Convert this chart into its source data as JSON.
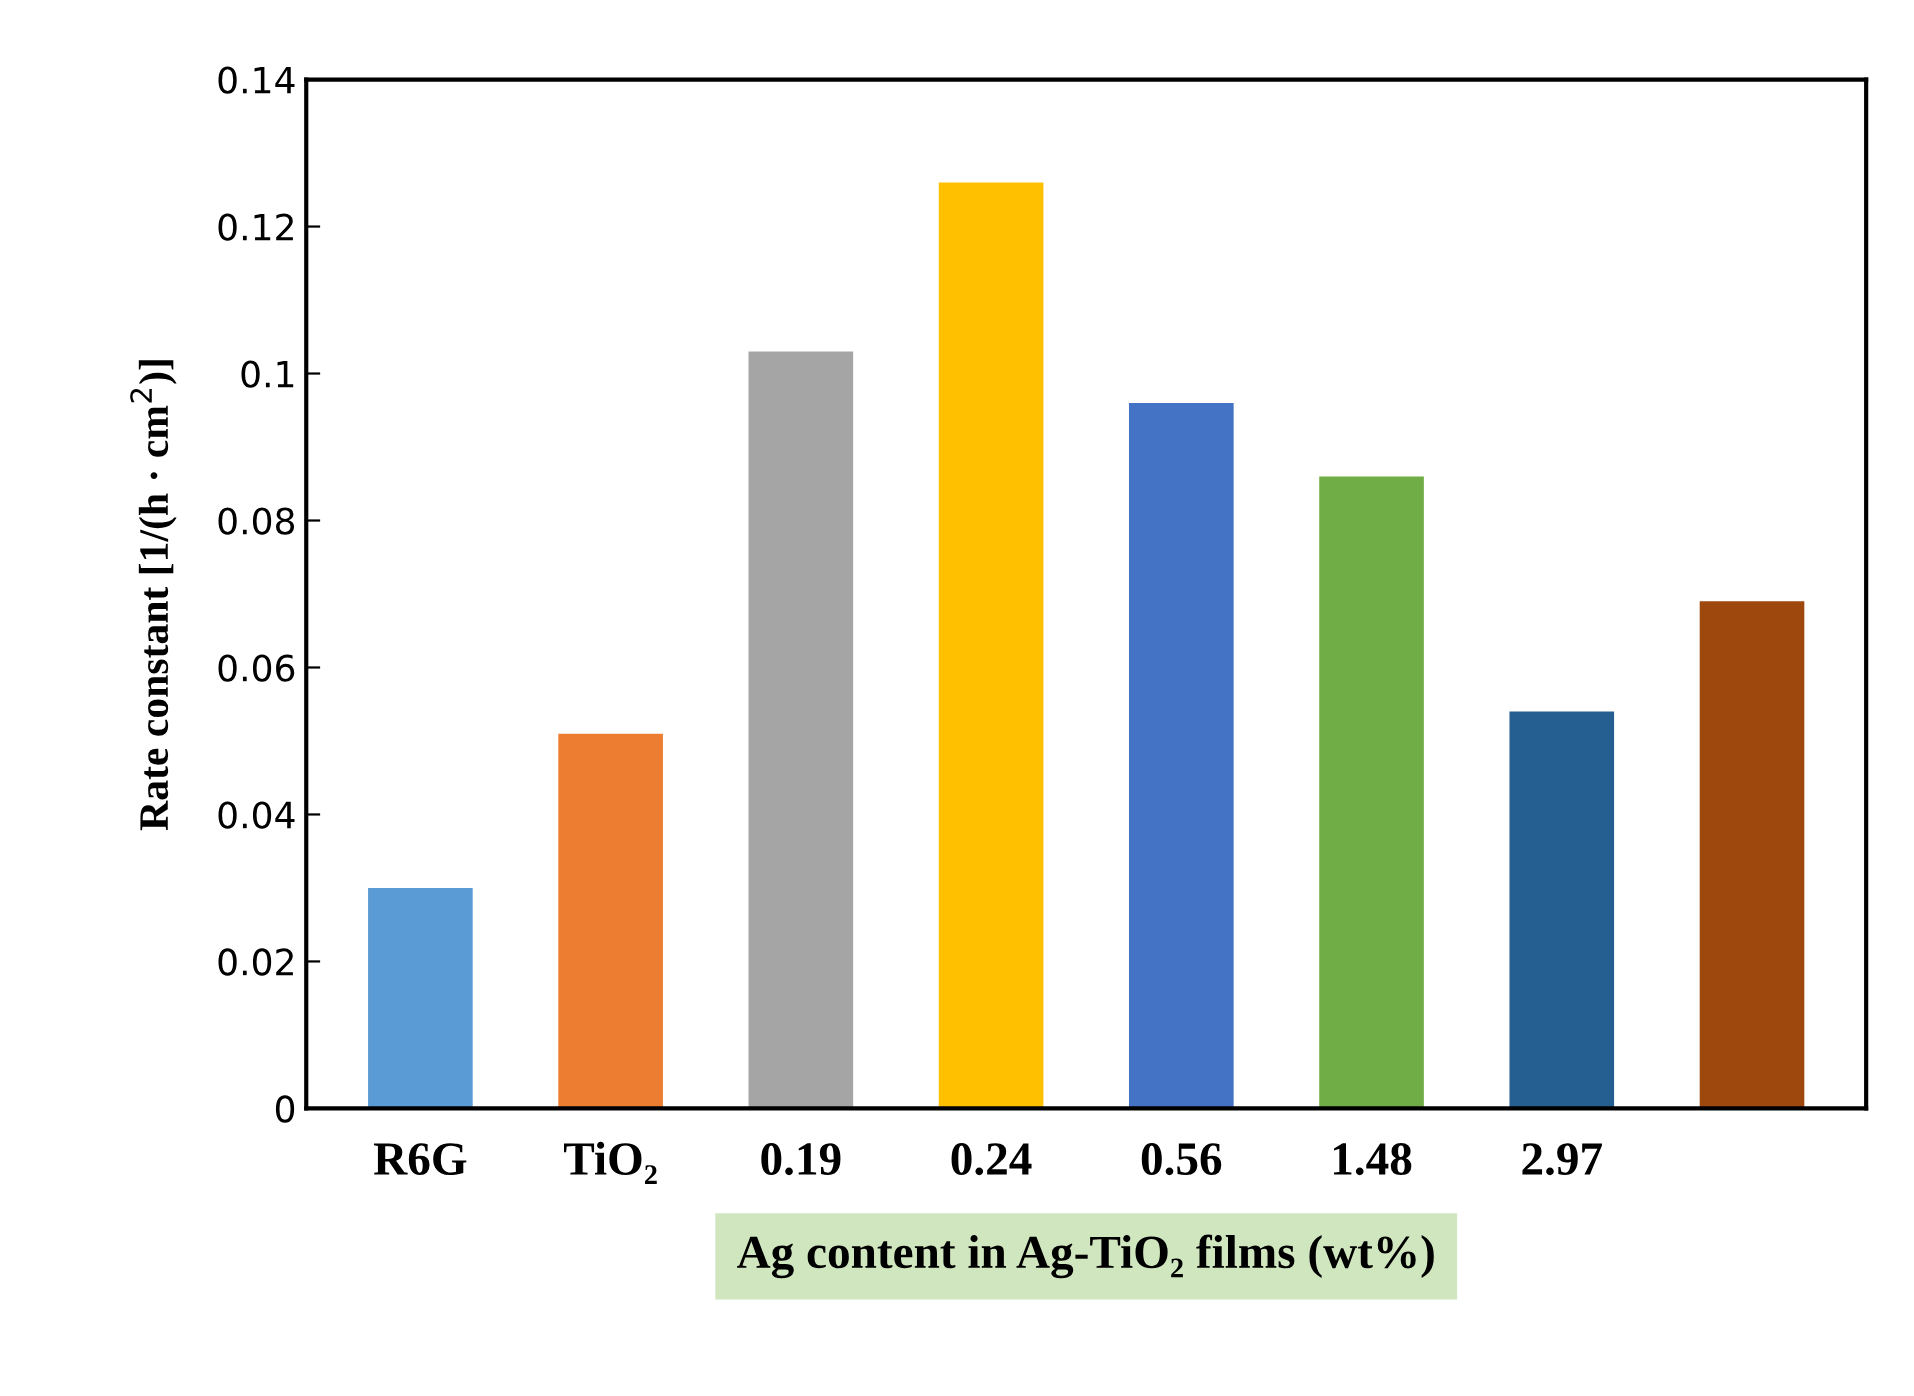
{
  "chart_data": {
    "type": "bar",
    "categories": [
      "R6G",
      "TiO₂",
      "0.19",
      "0.24",
      "0.56",
      "1.48",
      "2.97",
      null
    ],
    "values": [
      0.03,
      0.051,
      0.103,
      0.126,
      0.096,
      0.086,
      0.054,
      0.069
    ],
    "colors": [
      "#5b9bd5",
      "#ed7d31",
      "#a5a5a5",
      "#ffc000",
      "#4472c4",
      "#70ad47",
      "#255e91",
      "#9e480e"
    ],
    "xlabel": "Ag content in Ag-TiO₂ films (wt%)",
    "ylabel": "Rate constant [1/(h · cm$^{2}$)]",
    "ylim": [
      0,
      0.14
    ],
    "yticks": [
      0,
      0.02,
      0.04,
      0.06,
      0.08,
      0.1,
      0.12,
      0.14
    ],
    "grid": false,
    "legend": false
  }
}
